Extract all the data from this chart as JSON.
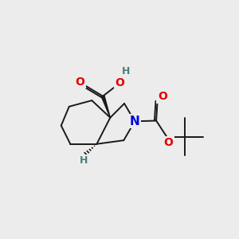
{
  "background_color": "#ececec",
  "bond_color": "#1a1a1a",
  "bond_width": 1.4,
  "atom_colors": {
    "O": "#e00000",
    "N": "#0000e0",
    "H_label": "#4a8080",
    "C": "#1a1a1a"
  }
}
